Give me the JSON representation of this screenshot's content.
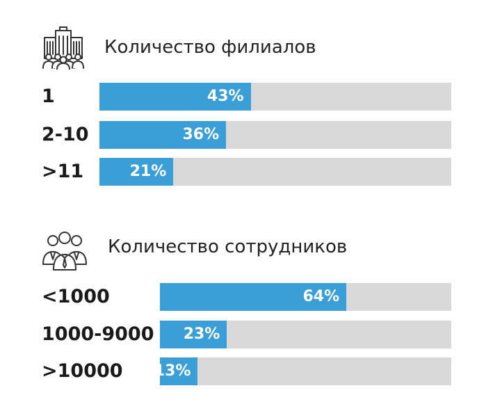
{
  "chart_data": [
    {
      "type": "bar",
      "title": "Количество филиалов",
      "icon": "office-building-people-icon",
      "categories": [
        "1",
        "2-10",
        ">11"
      ],
      "values": [
        43,
        36,
        21
      ],
      "value_labels": [
        "43%",
        "36%",
        "21%"
      ],
      "xlim": [
        0,
        100
      ],
      "grid": false,
      "colors": {
        "fill": "#3a9fd6",
        "track": "#d9d9d9",
        "label": "#ffffff"
      }
    },
    {
      "type": "bar",
      "title": "Количество сотрудников",
      "icon": "employees-group-icon",
      "categories": [
        "<1000",
        "1000-9000",
        ">10000"
      ],
      "values": [
        64,
        23,
        13
      ],
      "value_labels": [
        "64%",
        "23%",
        "13%"
      ],
      "xlim": [
        0,
        100
      ],
      "grid": false,
      "colors": {
        "fill": "#3a9fd6",
        "track": "#d9d9d9",
        "label": "#ffffff"
      }
    }
  ]
}
